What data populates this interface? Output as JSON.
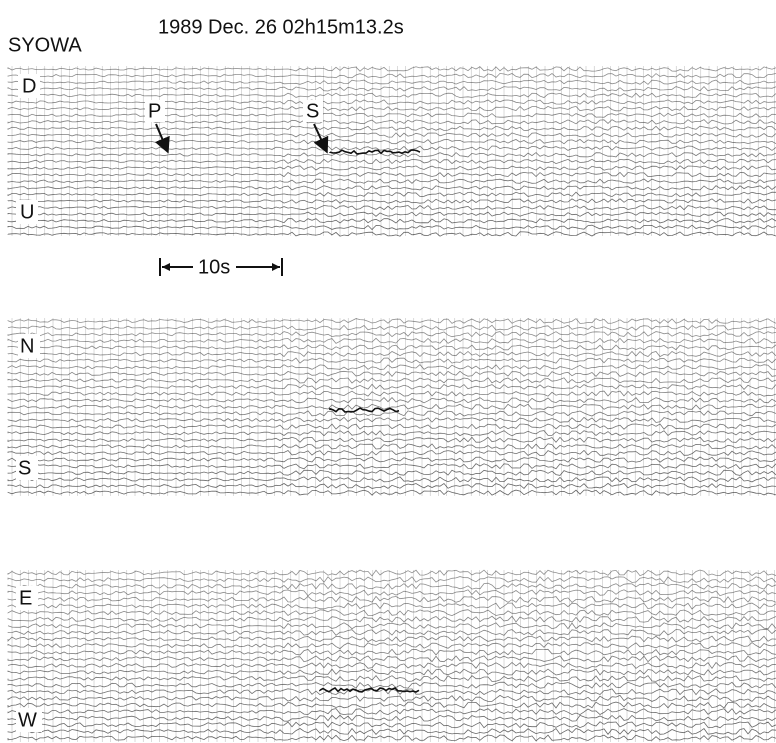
{
  "header": {
    "time": "1989 Dec. 26 02h15m13.2s",
    "station": "SYOWA"
  },
  "panels": [
    {
      "top": "D",
      "bottom": "U"
    },
    {
      "top": "N",
      "bottom": "S"
    },
    {
      "top": "E",
      "bottom": "W"
    }
  ],
  "phases": [
    "P",
    "S"
  ],
  "scale": "10s"
}
